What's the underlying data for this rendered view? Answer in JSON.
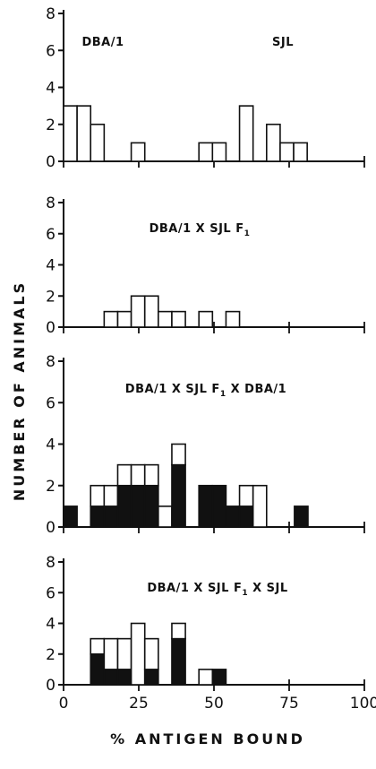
{
  "figure": {
    "ylabel": "NUMBER  OF  ANIMALS",
    "xlabel": "%  ANTIGEN  BOUND"
  },
  "chart_data": [
    {
      "type": "bar",
      "label_left": "DBA/1",
      "label_right": "SJL",
      "xlim": [
        0,
        100
      ],
      "ylim": [
        0,
        8
      ],
      "bin_width": 4.5,
      "x_ticks": [
        0,
        25,
        50,
        75,
        100
      ],
      "y_ticks": [
        0,
        2,
        4,
        6,
        8
      ],
      "series": [
        {
          "name": "open",
          "x": [
            2.25,
            6.75,
            11.25,
            24.75,
            47.25,
            51.75,
            60.75,
            69.75,
            74.25,
            78.75
          ],
          "values": [
            3,
            3,
            2,
            1,
            1,
            1,
            3,
            2,
            1,
            1
          ]
        }
      ]
    },
    {
      "type": "bar",
      "title": "DBA/1 X SJL F1",
      "xlim": [
        0,
        100
      ],
      "ylim": [
        0,
        8
      ],
      "bin_width": 4.5,
      "x_ticks": [
        0,
        25,
        50,
        75,
        100
      ],
      "y_ticks": [
        0,
        2,
        4,
        6,
        8
      ],
      "series": [
        {
          "name": "open",
          "x": [
            15.75,
            20.25,
            24.75,
            29.25,
            33.75,
            38.25,
            47.25,
            56.25
          ],
          "values": [
            1,
            1,
            2,
            2,
            1,
            1,
            1,
            1
          ]
        }
      ]
    },
    {
      "type": "bar",
      "title": "DBA/1 X SJL F1 X DBA/1",
      "xlim": [
        0,
        100
      ],
      "ylim": [
        0,
        8
      ],
      "bin_width": 4.5,
      "x_ticks": [
        0,
        25,
        50,
        75,
        100
      ],
      "y_ticks": [
        0,
        2,
        4,
        6,
        8
      ],
      "series": [
        {
          "name": "filled",
          "x": [
            2.25,
            11.25,
            15.75,
            20.25,
            24.75,
            29.25,
            33.75,
            38.25,
            47.25,
            51.75,
            56.25,
            60.75,
            65.25,
            79.0
          ],
          "values": [
            1,
            1,
            1,
            2,
            2,
            2,
            0,
            3,
            2,
            2,
            1,
            1,
            0,
            1
          ]
        },
        {
          "name": "open",
          "x": [
            2.25,
            11.25,
            15.75,
            20.25,
            24.75,
            29.25,
            33.75,
            38.25,
            47.25,
            51.75,
            56.25,
            60.75,
            65.25,
            79.0
          ],
          "values": [
            0,
            1,
            1,
            1,
            1,
            1,
            1,
            1,
            0,
            0,
            0,
            1,
            2,
            0
          ]
        }
      ]
    },
    {
      "type": "bar",
      "title": "DBA/1 X SJL F1 X SJL",
      "xlim": [
        0,
        100
      ],
      "ylim": [
        0,
        8
      ],
      "bin_width": 4.5,
      "x_ticks": [
        0,
        25,
        50,
        75,
        100
      ],
      "y_ticks": [
        0,
        2,
        4,
        6,
        8
      ],
      "series": [
        {
          "name": "filled",
          "x": [
            11.25,
            15.75,
            20.25,
            24.75,
            29.25,
            33.75,
            38.25,
            47.25,
            51.75
          ],
          "values": [
            2,
            1,
            1,
            0,
            1,
            0,
            3,
            0,
            1
          ]
        },
        {
          "name": "open",
          "x": [
            11.25,
            15.75,
            20.25,
            24.75,
            29.25,
            33.75,
            38.25,
            47.25,
            51.75
          ],
          "values": [
            1,
            2,
            2,
            4,
            2,
            0,
            1,
            1,
            0
          ]
        }
      ]
    }
  ]
}
